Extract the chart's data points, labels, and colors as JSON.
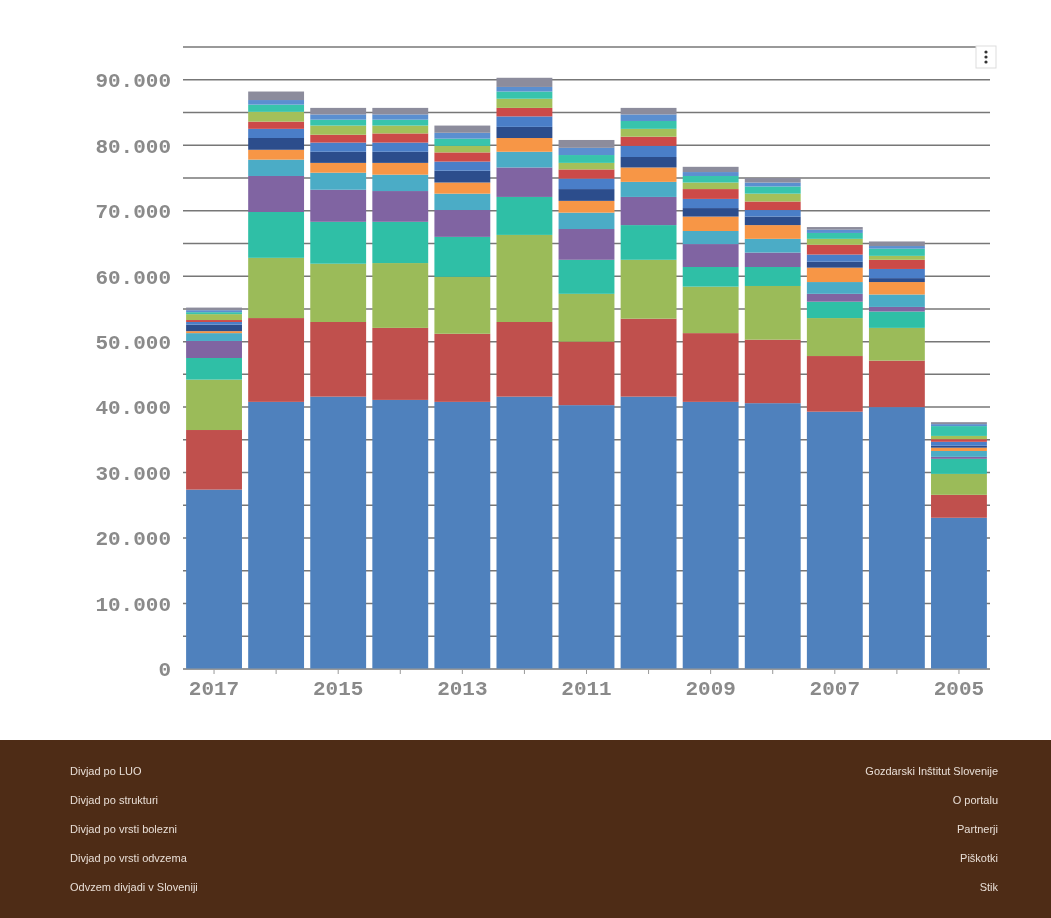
{
  "chart_data": {
    "type": "bar",
    "stacked": true,
    "categories": [
      "2017",
      null,
      "2015",
      null,
      "2013",
      null,
      "2011",
      null,
      "2009",
      null,
      "2007",
      null,
      "2005"
    ],
    "series": [
      {
        "color": "#4f81bd",
        "values": [
          27400,
          40800,
          41600,
          41100,
          40800,
          41600,
          40300,
          41600,
          40800,
          40600,
          39300,
          40000,
          23100
        ]
      },
      {
        "color": "#c0504d",
        "values": [
          9100,
          12800,
          11400,
          11000,
          10400,
          11400,
          9700,
          11900,
          10500,
          9700,
          8500,
          7100,
          3500
        ]
      },
      {
        "color": "#9bbb59",
        "values": [
          7700,
          9200,
          8900,
          9900,
          8700,
          13300,
          7300,
          9000,
          7100,
          8200,
          5800,
          5000,
          3200
        ]
      },
      {
        "color": "#2fbfa6",
        "values": [
          3300,
          7000,
          6400,
          6300,
          6100,
          5800,
          5200,
          5300,
          3000,
          2900,
          2500,
          2500,
          2300
        ]
      },
      {
        "color": "#8064a2",
        "values": [
          2600,
          5500,
          4900,
          4700,
          4100,
          4500,
          4700,
          4300,
          3500,
          2200,
          1200,
          700,
          300
        ]
      },
      {
        "color": "#4bacc6",
        "values": [
          1200,
          2500,
          2600,
          2500,
          2500,
          2400,
          2500,
          2300,
          2000,
          2100,
          1800,
          1900,
          900
        ]
      },
      {
        "color": "#f79646",
        "values": [
          300,
          1500,
          1500,
          1800,
          1700,
          2100,
          1800,
          2200,
          2200,
          2100,
          2200,
          1900,
          500
        ]
      },
      {
        "color": "#2c4d8c",
        "values": [
          1000,
          1800,
          1700,
          1700,
          1800,
          1700,
          1800,
          1600,
          1300,
          1300,
          900,
          600,
          300
        ]
      },
      {
        "color": "#4a7ec8",
        "values": [
          400,
          1400,
          1400,
          1400,
          1400,
          1600,
          1600,
          1700,
          1400,
          1000,
          1100,
          1400,
          600
        ]
      },
      {
        "color": "#cc4a48",
        "values": [
          300,
          1100,
          1200,
          1400,
          1400,
          1300,
          1400,
          1400,
          1500,
          1300,
          1500,
          1400,
          400
        ]
      },
      {
        "color": "#a3c05a",
        "values": [
          900,
          1500,
          1400,
          1200,
          1000,
          1400,
          1000,
          1200,
          1000,
          1200,
          900,
          600,
          500
        ]
      },
      {
        "color": "#38c4ac",
        "values": [
          300,
          1100,
          900,
          900,
          1100,
          1100,
          1200,
          1200,
          1000,
          1100,
          900,
          1100,
          1500
        ]
      },
      {
        "color": "#5b8fd0",
        "values": [
          300,
          700,
          800,
          800,
          900,
          700,
          1100,
          1000,
          600,
          600,
          500,
          400,
          300
        ]
      },
      {
        "color": "#8c8c9c",
        "values": [
          400,
          1300,
          1000,
          1000,
          1100,
          1400,
          1200,
          1000,
          800,
          700,
          400,
          700,
          300
        ]
      }
    ],
    "ylim": [
      0,
      95000
    ],
    "yticks": [
      0,
      {
        "value": 5000,
        "label": null
      },
      {
        "value": 10000,
        "label": "10.000"
      },
      {
        "value": 15000,
        "label": null
      },
      {
        "value": 20000,
        "label": "20.000"
      },
      {
        "value": 25000,
        "label": null
      },
      {
        "value": 30000,
        "label": "30.000"
      },
      {
        "value": 35000,
        "label": null
      },
      {
        "value": 40000,
        "label": "40.000"
      },
      {
        "value": 45000,
        "label": null
      },
      {
        "value": 50000,
        "label": "50.000"
      },
      {
        "value": 55000,
        "label": null
      },
      {
        "value": 60000,
        "label": "60.000"
      },
      {
        "value": 65000,
        "label": null
      },
      {
        "value": 70000,
        "label": "70.000"
      },
      {
        "value": 75000,
        "label": null
      },
      {
        "value": 80000,
        "label": "80.000"
      },
      {
        "value": 85000,
        "label": null
      },
      {
        "value": 90000,
        "label": "90.000"
      },
      {
        "value": 95000,
        "label": null
      }
    ],
    "grid": "y",
    "annotations": [
      "Divjad po LUO",
      "Divjad po strukturi",
      "Divjad po vrsti bolezni",
      "Divjad po vrsti odvzema",
      "Odvzem divjadi v Sloveniji",
      "Gozdarski Inštitut Slovenije",
      "O portalu",
      "Partnerji",
      "Piškotki",
      "Stik"
    ]
  }
}
